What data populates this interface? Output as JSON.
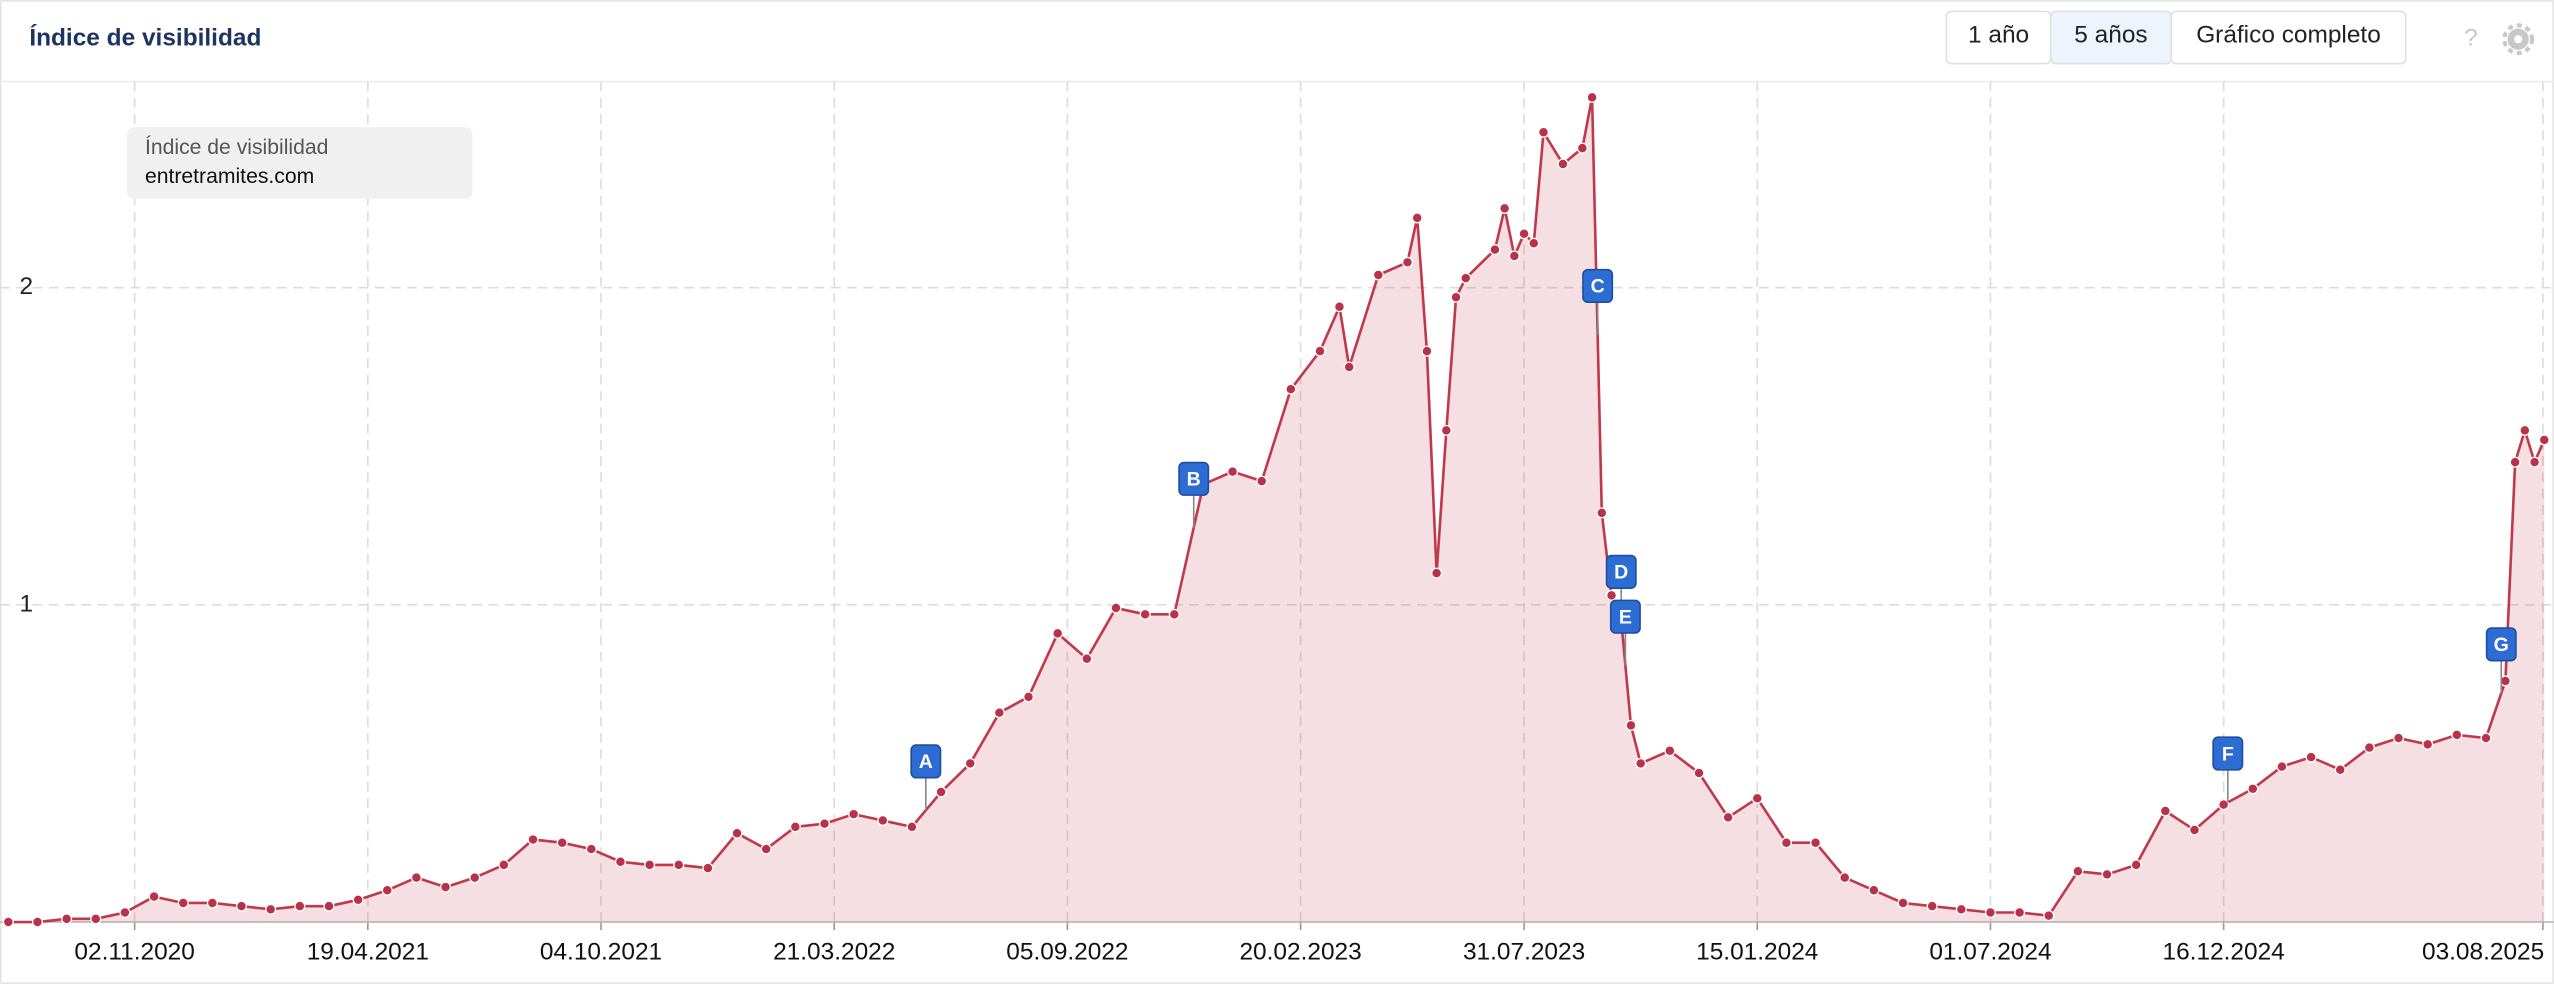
{
  "header": {
    "title": "Índice de visibilidad",
    "buttons": [
      "1 año",
      "5 años",
      "Gráfico completo"
    ],
    "selected_button": 1,
    "help_icon": "?"
  },
  "chart_data": {
    "type": "line",
    "legend_title": "Índice de visibilidad",
    "x": [
      "03.08.2020",
      "24.08.2020",
      "14.09.2020",
      "05.10.2020",
      "26.10.2020",
      "16.11.2020",
      "07.12.2020",
      "28.12.2020",
      "18.01.2021",
      "08.02.2021",
      "01.03.2021",
      "22.03.2021",
      "12.04.2021",
      "03.05.2021",
      "24.05.2021",
      "14.06.2021",
      "05.07.2021",
      "26.07.2021",
      "16.08.2021",
      "06.09.2021",
      "27.09.2021",
      "18.10.2021",
      "08.11.2021",
      "29.11.2021",
      "20.12.2021",
      "10.01.2022",
      "31.01.2022",
      "21.02.2022",
      "14.03.2022",
      "04.04.2022",
      "25.04.2022",
      "16.05.2022",
      "06.06.2022",
      "27.06.2022",
      "18.07.2022",
      "08.08.2022",
      "29.08.2022",
      "19.09.2022",
      "10.10.2022",
      "31.10.2022",
      "21.11.2022",
      "12.12.2022",
      "02.01.2023",
      "23.01.2023",
      "13.02.2023",
      "06.03.2023",
      "20.03.2023",
      "27.03.2023",
      "17.04.2023",
      "08.05.2023",
      "15.05.2023",
      "22.05.2023",
      "29.05.2023",
      "05.06.2023",
      "12.06.2023",
      "19.06.2023",
      "10.07.2023",
      "17.07.2023",
      "24.07.2023",
      "31.07.2023",
      "07.08.2023",
      "14.08.2023",
      "28.08.2023",
      "11.09.2023",
      "18.09.2023",
      "25.09.2023",
      "02.10.2023",
      "09.10.2023",
      "16.10.2023",
      "23.10.2023",
      "13.11.2023",
      "04.12.2023",
      "25.12.2023",
      "15.01.2024",
      "05.02.2024",
      "26.02.2024",
      "18.03.2024",
      "08.04.2024",
      "29.04.2024",
      "20.05.2024",
      "10.06.2024",
      "01.07.2024",
      "22.07.2024",
      "12.08.2024",
      "02.09.2024",
      "23.09.2024",
      "14.10.2024",
      "04.11.2024",
      "25.11.2024",
      "16.12.2024",
      "06.01.2025",
      "27.01.2025",
      "17.02.2025",
      "10.03.2025",
      "31.03.2025",
      "21.04.2025",
      "12.05.2025",
      "02.06.2025",
      "23.06.2025",
      "07.07.2025",
      "14.07.2025",
      "21.07.2025",
      "28.07.2025",
      "04.08.2025"
    ],
    "series": [
      {
        "name": "entretramites.com",
        "color": "#c0394b",
        "values": [
          0.0,
          0.0,
          0.01,
          0.01,
          0.03,
          0.08,
          0.06,
          0.06,
          0.05,
          0.04,
          0.05,
          0.05,
          0.07,
          0.1,
          0.14,
          0.11,
          0.14,
          0.18,
          0.26,
          0.25,
          0.23,
          0.19,
          0.18,
          0.18,
          0.17,
          0.28,
          0.23,
          0.3,
          0.31,
          0.34,
          0.32,
          0.3,
          0.41,
          0.5,
          0.66,
          0.71,
          0.91,
          0.83,
          0.99,
          0.97,
          0.97,
          1.38,
          1.42,
          1.39,
          1.68,
          1.8,
          1.94,
          1.75,
          2.04,
          2.08,
          2.22,
          1.8,
          1.1,
          1.55,
          1.97,
          2.03,
          2.12,
          2.25,
          2.1,
          2.17,
          2.14,
          2.49,
          2.39,
          2.44,
          2.6,
          1.29,
          1.03,
          0.95,
          0.62,
          0.5,
          0.54,
          0.47,
          0.33,
          0.39,
          0.25,
          0.25,
          0.14,
          0.1,
          0.06,
          0.05,
          0.04,
          0.03,
          0.03,
          0.02,
          0.16,
          0.15,
          0.18,
          0.35,
          0.29,
          0.37,
          0.42,
          0.49,
          0.52,
          0.48,
          0.55,
          0.58,
          0.56,
          0.59,
          0.58,
          0.76,
          1.45,
          1.55,
          1.45,
          1.52
        ]
      }
    ],
    "annotations": [
      {
        "label": "A",
        "x": "26.05.2022"
      },
      {
        "label": "B",
        "x": "05.12.2022"
      },
      {
        "label": "C",
        "x": "22.09.2023"
      },
      {
        "label": "D",
        "x": "09.10.2023"
      },
      {
        "label": "E",
        "x": "12.10.2023"
      },
      {
        "label": "F",
        "x": "19.12.2024"
      },
      {
        "label": "G",
        "x": "04.07.2025"
      }
    ],
    "xlim": [
      "28.07.2020",
      "11.08.2025"
    ],
    "xticks": [
      "02.11.2020",
      "19.04.2021",
      "04.10.2021",
      "21.03.2022",
      "05.09.2022",
      "20.02.2023",
      "31.07.2023",
      "15.01.2024",
      "01.07.2024",
      "16.12.2024",
      "03.08.2025"
    ],
    "ylim": [
      0,
      2.65
    ],
    "yticks": [
      1,
      2
    ],
    "grid": true
  }
}
